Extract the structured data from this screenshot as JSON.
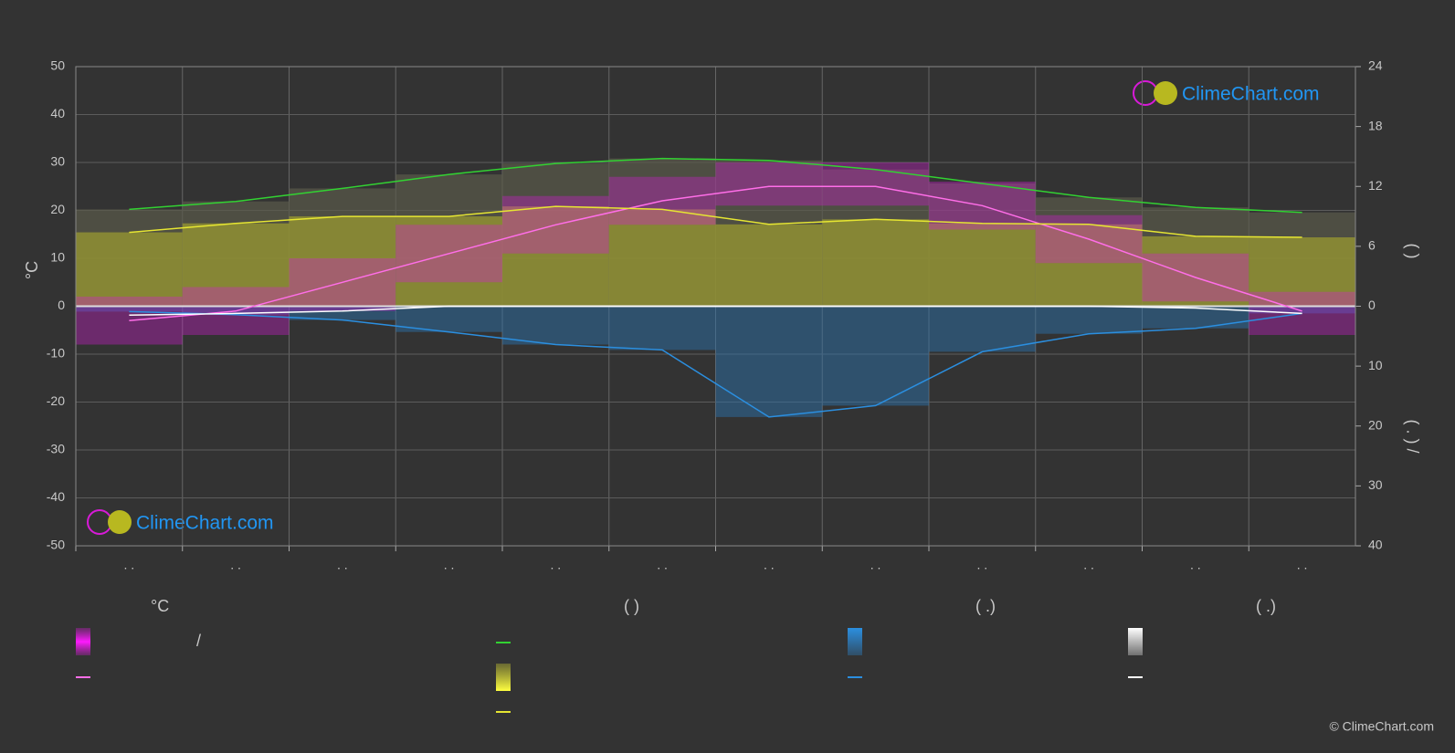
{
  "chart_data": {
    "type": "climate",
    "categories": [
      ". .",
      ". .",
      ". .",
      ". .",
      ". .",
      ". .",
      ". .",
      ". .",
      ". .",
      ". .",
      ". .",
      ". ."
    ],
    "ylabel": "°C",
    "ylim": [
      -50,
      50
    ],
    "yticks": [
      -50,
      -40,
      -30,
      -20,
      -10,
      0,
      10,
      20,
      30,
      40,
      50
    ],
    "sun_axis": {
      "label": "(   )",
      "lim": [
        0,
        24
      ],
      "ticks": [
        6,
        12,
        18,
        24
      ]
    },
    "rain_axis": {
      "label": "( . )  /",
      "lim": [
        0,
        40
      ],
      "ticks": [
        0,
        10,
        20,
        30,
        40
      ]
    },
    "grid": true,
    "temp_range": {
      "color": "#d81ad8",
      "max": [
        2,
        4,
        10,
        17,
        23,
        27,
        30,
        30,
        26,
        19,
        11,
        3
      ],
      "min": [
        -8,
        -6,
        -1,
        5,
        11,
        17,
        21,
        21,
        16,
        9,
        1,
        -6
      ]
    },
    "series": [
      {
        "color": "#ff6ee8",
        "axis": "temp",
        "values": [
          -3,
          -1,
          5,
          11,
          17,
          22,
          25,
          25,
          21,
          14,
          6,
          -1
        ]
      },
      {
        "color": "#32d232",
        "axis": "sun",
        "values": [
          9.7,
          10.5,
          11.8,
          13.2,
          14.3,
          14.8,
          14.6,
          13.7,
          12.3,
          10.9,
          9.9,
          9.4
        ]
      },
      {
        "color": "#e6e632",
        "axis": "sun",
        "values": [
          7.4,
          8.3,
          9.0,
          9.0,
          10.0,
          9.7,
          8.2,
          8.7,
          8.3,
          8.2,
          7.0,
          6.9
        ]
      },
      {
        "color": "#2b8fe0",
        "axis": "rain",
        "values": [
          0.9,
          1.4,
          2.3,
          4.3,
          6.4,
          7.3,
          18.5,
          16.6,
          7.6,
          4.6,
          3.7,
          1.2
        ]
      },
      {
        "color": "#ffffff",
        "axis": "rain",
        "values": [
          1.5,
          1.2,
          0.8,
          0,
          0,
          0,
          0,
          0,
          0,
          0,
          0.3,
          1.2
        ]
      }
    ],
    "legend": [
      {
        "title": "°C",
        "item": "/"
      },
      {
        "title": "(          )"
      },
      {
        "title": "(   .)"
      },
      {
        "title": "(   .)"
      }
    ],
    "logo": "ClimeChart.com",
    "copyright": "© ClimeChart.com"
  }
}
